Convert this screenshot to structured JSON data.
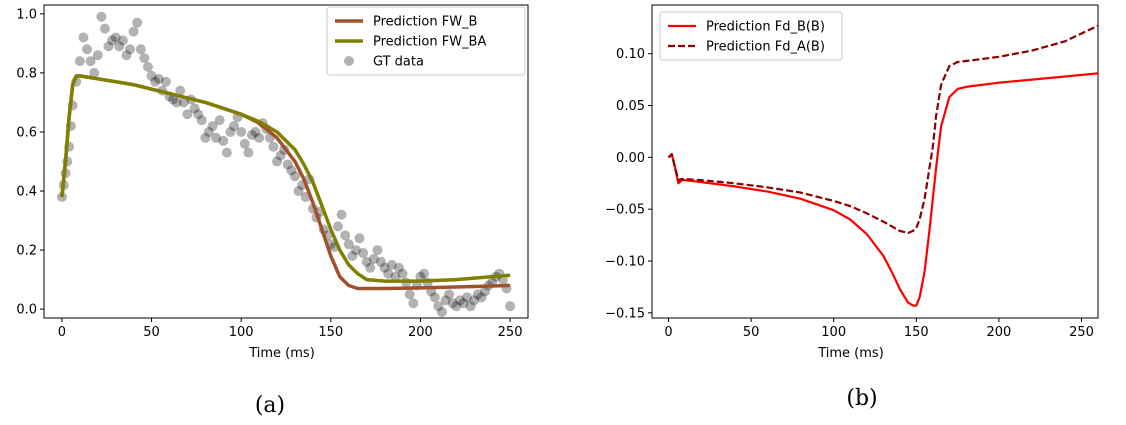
{
  "chart_data": [
    {
      "type": "line",
      "panel_caption": "(a)",
      "xlabel": "Time (ms)",
      "ylabel": "",
      "xlim": [
        -10,
        260
      ],
      "ylim": [
        -0.03,
        1.03
      ],
      "xticks": [
        0,
        50,
        100,
        150,
        200,
        250
      ],
      "yticks": [
        0.0,
        0.2,
        0.4,
        0.6,
        0.8,
        1.0
      ],
      "legend_position": "top-right",
      "grid": false,
      "series": [
        {
          "name": "Prediction FW_B",
          "kind": "line",
          "color": "#a0522d",
          "x": [
            0,
            2,
            4,
            6,
            8,
            10,
            20,
            40,
            60,
            80,
            100,
            110,
            120,
            130,
            135,
            140,
            145,
            150,
            155,
            160,
            165,
            170,
            180,
            200,
            220,
            250
          ],
          "y": [
            0.38,
            0.5,
            0.65,
            0.76,
            0.79,
            0.79,
            0.78,
            0.76,
            0.73,
            0.7,
            0.66,
            0.63,
            0.58,
            0.5,
            0.44,
            0.36,
            0.27,
            0.18,
            0.11,
            0.08,
            0.07,
            0.07,
            0.07,
            0.072,
            0.075,
            0.08
          ]
        },
        {
          "name": "Prediction FW_BA",
          "kind": "line",
          "color": "#808000",
          "x": [
            0,
            2,
            4,
            6,
            8,
            10,
            20,
            40,
            60,
            80,
            100,
            110,
            120,
            130,
            135,
            140,
            145,
            150,
            155,
            160,
            165,
            170,
            180,
            200,
            220,
            250
          ],
          "y": [
            0.38,
            0.5,
            0.65,
            0.76,
            0.79,
            0.79,
            0.78,
            0.76,
            0.73,
            0.7,
            0.66,
            0.635,
            0.6,
            0.54,
            0.49,
            0.43,
            0.35,
            0.27,
            0.2,
            0.15,
            0.12,
            0.1,
            0.095,
            0.095,
            0.1,
            0.115
          ]
        },
        {
          "name": "GT data",
          "kind": "scatter",
          "color": "#808080",
          "x": [
            0,
            1,
            2,
            3,
            4,
            5,
            6,
            8,
            10,
            12,
            14,
            16,
            18,
            20,
            22,
            24,
            26,
            28,
            30,
            32,
            34,
            36,
            38,
            40,
            42,
            44,
            46,
            48,
            50,
            52,
            54,
            56,
            58,
            60,
            62,
            64,
            66,
            68,
            70,
            72,
            74,
            76,
            78,
            80,
            82,
            84,
            86,
            88,
            90,
            92,
            94,
            96,
            98,
            100,
            102,
            104,
            106,
            108,
            110,
            112,
            114,
            116,
            118,
            120,
            122,
            124,
            126,
            128,
            130,
            132,
            134,
            136,
            138,
            140,
            142,
            144,
            146,
            148,
            150,
            152,
            154,
            156,
            158,
            160,
            162,
            164,
            166,
            168,
            170,
            172,
            174,
            176,
            178,
            180,
            182,
            184,
            186,
            188,
            190,
            192,
            194,
            196,
            198,
            200,
            202,
            204,
            206,
            208,
            210,
            212,
            214,
            216,
            218,
            220,
            222,
            224,
            226,
            228,
            230,
            232,
            234,
            236,
            238,
            240,
            242,
            244,
            246,
            248,
            250
          ],
          "y": [
            0.38,
            0.42,
            0.46,
            0.5,
            0.55,
            0.62,
            0.69,
            0.77,
            0.84,
            0.92,
            0.88,
            0.84,
            0.8,
            0.86,
            0.99,
            0.95,
            0.89,
            0.91,
            0.92,
            0.89,
            0.91,
            0.86,
            0.88,
            0.94,
            0.97,
            0.88,
            0.85,
            0.82,
            0.79,
            0.77,
            0.78,
            0.74,
            0.77,
            0.72,
            0.71,
            0.7,
            0.74,
            0.7,
            0.66,
            0.71,
            0.68,
            0.66,
            0.64,
            0.58,
            0.6,
            0.62,
            0.58,
            0.64,
            0.57,
            0.53,
            0.6,
            0.62,
            0.65,
            0.6,
            0.56,
            0.53,
            0.59,
            0.6,
            0.58,
            0.63,
            0.61,
            0.58,
            0.55,
            0.5,
            0.52,
            0.54,
            0.49,
            0.47,
            0.45,
            0.4,
            0.42,
            0.38,
            0.44,
            0.34,
            0.31,
            0.33,
            0.27,
            0.25,
            0.22,
            0.21,
            0.28,
            0.32,
            0.25,
            0.22,
            0.18,
            0.2,
            0.24,
            0.19,
            0.16,
            0.14,
            0.17,
            0.2,
            0.16,
            0.14,
            0.12,
            0.15,
            0.11,
            0.14,
            0.12,
            0.09,
            0.05,
            0.02,
            0.08,
            0.11,
            0.12,
            0.09,
            0.06,
            0.04,
            0.01,
            -0.01,
            0.03,
            0.05,
            0.02,
            0.01,
            0.03,
            0.02,
            0.04,
            0.01,
            0.03,
            0.05,
            0.04,
            0.06,
            0.08,
            0.09,
            0.11,
            0.12,
            0.1,
            0.07,
            0.01
          ]
        }
      ]
    },
    {
      "type": "line",
      "panel_caption": "(b)",
      "xlabel": "Time (ms)",
      "ylabel": "",
      "xlim": [
        -10,
        260
      ],
      "ylim": [
        -0.155,
        0.147
      ],
      "xticks": [
        0,
        50,
        100,
        150,
        200,
        250
      ],
      "yticks": [
        -0.15,
        -0.1,
        -0.05,
        0.0,
        0.05,
        0.1
      ],
      "ytick_labels": [
        "−0.15",
        "−0.10",
        "−0.05",
        "0.00",
        "0.05",
        "0.10"
      ],
      "legend_position": "top-left",
      "grid": false,
      "series": [
        {
          "name": "Prediction Fd_B(B)",
          "kind": "line",
          "style": "solid",
          "color": "#ff0000",
          "x": [
            0,
            2,
            4,
            6,
            8,
            10,
            20,
            40,
            60,
            80,
            100,
            110,
            120,
            130,
            135,
            140,
            145,
            148,
            150,
            152,
            155,
            158,
            160,
            162,
            165,
            170,
            175,
            180,
            200,
            220,
            240,
            260
          ],
          "y": [
            0.0,
            0.003,
            -0.01,
            -0.025,
            -0.022,
            -0.022,
            -0.024,
            -0.028,
            -0.033,
            -0.04,
            -0.051,
            -0.06,
            -0.074,
            -0.095,
            -0.11,
            -0.127,
            -0.14,
            -0.143,
            -0.143,
            -0.135,
            -0.11,
            -0.07,
            -0.04,
            -0.01,
            0.03,
            0.058,
            0.066,
            0.068,
            0.072,
            0.075,
            0.078,
            0.081
          ]
        },
        {
          "name": "Prediction Fd_A(B)",
          "kind": "line",
          "style": "dashed",
          "color": "#8b0000",
          "x": [
            0,
            2,
            4,
            6,
            8,
            10,
            20,
            40,
            60,
            80,
            100,
            110,
            120,
            130,
            140,
            145,
            148,
            150,
            152,
            155,
            158,
            160,
            162,
            165,
            170,
            175,
            180,
            200,
            220,
            240,
            260
          ],
          "y": [
            0.0,
            0.003,
            -0.01,
            -0.022,
            -0.021,
            -0.021,
            -0.022,
            -0.025,
            -0.029,
            -0.034,
            -0.042,
            -0.047,
            -0.054,
            -0.062,
            -0.071,
            -0.073,
            -0.071,
            -0.068,
            -0.06,
            -0.04,
            -0.01,
            0.01,
            0.04,
            0.07,
            0.088,
            0.092,
            0.093,
            0.097,
            0.103,
            0.112,
            0.127
          ]
        }
      ]
    }
  ]
}
